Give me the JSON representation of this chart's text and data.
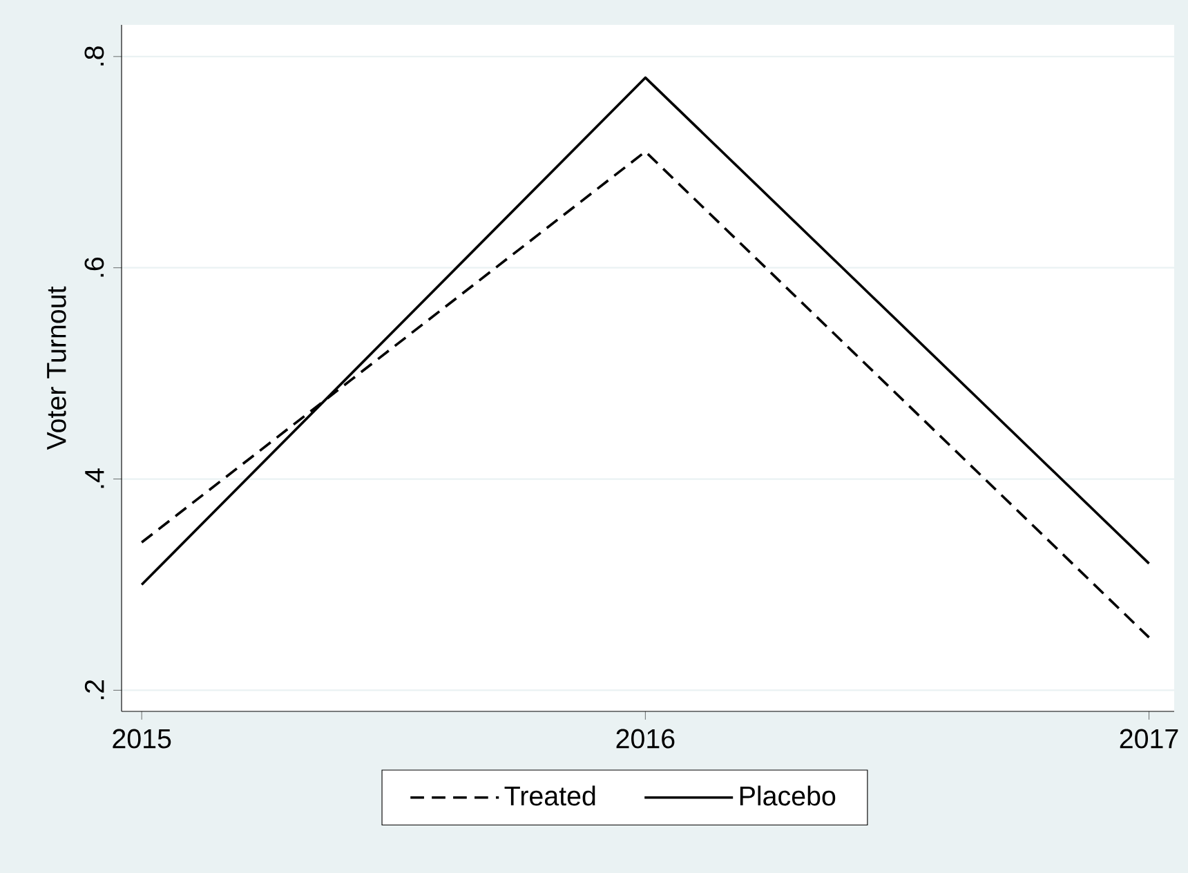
{
  "chart_data": {
    "type": "line",
    "ylabel": "Voter Turnout",
    "x": [
      2015,
      2016,
      2017
    ],
    "series": [
      {
        "name": "Treated",
        "color": "#000000",
        "line_style": "dashed",
        "values": [
          0.34,
          0.71,
          0.25
        ]
      },
      {
        "name": "Placebo",
        "color": "#000000",
        "line_style": "solid",
        "values": [
          0.3,
          0.78,
          0.32
        ]
      }
    ],
    "xlim": [
      2014.96,
      2017.05
    ],
    "ylim": [
      0.18,
      0.83
    ],
    "xticks": [
      2015,
      2016,
      2017
    ],
    "yticks": [
      {
        "value": 0.2,
        "label": ".2"
      },
      {
        "value": 0.4,
        "label": ".4"
      },
      {
        "value": 0.6,
        "label": ".6"
      },
      {
        "value": 0.8,
        "label": ".8"
      }
    ],
    "grid": "y",
    "legend": "bottom"
  }
}
